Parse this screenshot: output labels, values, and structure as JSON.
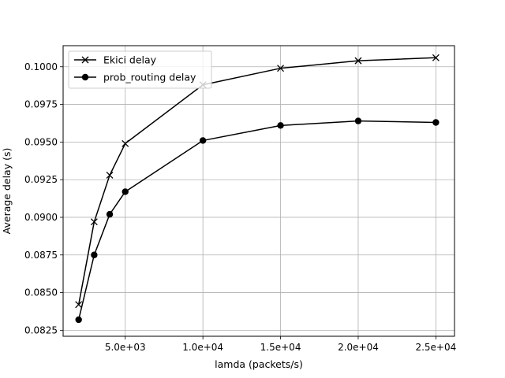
{
  "chart_data": {
    "type": "line",
    "title": "",
    "xlabel": "lamda (packets/s)",
    "ylabel": "Average delay (s)",
    "xlim": [
      1000,
      26200
    ],
    "ylim": [
      0.0821,
      0.1014
    ],
    "x_ticks": [
      5000,
      10000,
      15000,
      20000,
      25000
    ],
    "x_tick_labels": [
      "5.0e+03",
      "1.0e+04",
      "1.5e+04",
      "2.0e+04",
      "2.5e+04"
    ],
    "y_ticks": [
      0.0825,
      0.085,
      0.0875,
      0.09,
      0.0925,
      0.095,
      0.0975,
      0.1
    ],
    "y_tick_labels": [
      "0.0825",
      "0.0850",
      "0.0875",
      "0.0900",
      "0.0925",
      "0.0950",
      "0.0975",
      "0.1000"
    ],
    "grid": true,
    "legend_position": "top-left",
    "series": [
      {
        "name": "Ekici delay",
        "marker": "x",
        "color": "#000000",
        "x": [
          2000,
          3000,
          4000,
          5000,
          10000,
          15000,
          20000,
          25000
        ],
        "y": [
          0.0842,
          0.0897,
          0.0928,
          0.0949,
          0.0988,
          0.0999,
          0.1004,
          0.1006
        ]
      },
      {
        "name": "prob_routing delay",
        "marker": "o",
        "color": "#000000",
        "x": [
          2000,
          3000,
          4000,
          5000,
          10000,
          15000,
          20000,
          25000
        ],
        "y": [
          0.0832,
          0.0875,
          0.0902,
          0.0917,
          0.0951,
          0.0961,
          0.0964,
          0.0963
        ]
      }
    ]
  }
}
